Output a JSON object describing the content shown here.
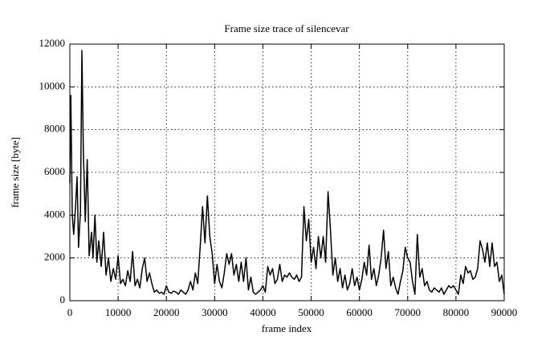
{
  "chart_data": {
    "type": "line",
    "title": "Frame size trace of silencevar",
    "x_label": "frame index",
    "y_label": "frame size [byte]",
    "color": "#000000",
    "grid": true,
    "xlim": [
      0,
      90000
    ],
    "xticks": [
      0,
      10000,
      20000,
      30000,
      40000,
      50000,
      60000,
      70000,
      80000,
      90000
    ],
    "ylim": [
      0,
      12000
    ],
    "yticks": [
      0,
      2000,
      4000,
      6000,
      8000,
      10000,
      12000
    ],
    "x": [
      0,
      200,
      500,
      800,
      1200,
      1500,
      1800,
      2200,
      2500,
      2800,
      3200,
      3600,
      4000,
      4500,
      4800,
      5200,
      5600,
      6000,
      6500,
      7000,
      7500,
      8000,
      8500,
      9000,
      9500,
      10000,
      10500,
      11000,
      11500,
      12000,
      12500,
      13000,
      13500,
      14000,
      14500,
      15000,
      15500,
      16000,
      16500,
      17000,
      17500,
      18000,
      18500,
      19000,
      19500,
      20000,
      20500,
      21000,
      21500,
      22000,
      22500,
      23000,
      23500,
      24000,
      24500,
      25000,
      25500,
      26000,
      26500,
      27000,
      27500,
      28000,
      28500,
      29000,
      29500,
      30000,
      30500,
      31000,
      31500,
      32000,
      32500,
      33000,
      33500,
      34000,
      34500,
      35000,
      35500,
      36000,
      36500,
      37000,
      37500,
      38000,
      38500,
      39000,
      39500,
      40000,
      40500,
      41000,
      41500,
      42000,
      42500,
      43000,
      43500,
      44000,
      44500,
      45000,
      45500,
      46000,
      46500,
      47000,
      47500,
      48000,
      48500,
      49000,
      49500,
      50000,
      50500,
      51000,
      51500,
      52000,
      52500,
      53000,
      53500,
      54000,
      54500,
      55000,
      55500,
      56000,
      56500,
      57000,
      57500,
      58000,
      58500,
      59000,
      59500,
      60000,
      60500,
      61000,
      61500,
      62000,
      62500,
      63000,
      63500,
      64000,
      64500,
      65000,
      65500,
      66000,
      66500,
      67000,
      67500,
      68000,
      68500,
      69000,
      69500,
      70000,
      70500,
      71000,
      71500,
      72000,
      72500,
      73000,
      73500,
      74000,
      74500,
      75000,
      75500,
      76000,
      76500,
      77000,
      77500,
      78000,
      78500,
      79000,
      79500,
      80000,
      80500,
      81000,
      81500,
      82000,
      82500,
      83000,
      83500,
      84000,
      84500,
      85000,
      85500,
      86000,
      86500,
      87000,
      87500,
      88000,
      88500,
      89000,
      89500,
      90000
    ],
    "values": [
      5500,
      9600,
      4000,
      3100,
      4500,
      5800,
      2500,
      4200,
      11700,
      7000,
      3700,
      6600,
      2100,
      3200,
      2000,
      4000,
      1800,
      2800,
      1600,
      3200,
      1200,
      2000,
      900,
      1500,
      1000,
      2100,
      800,
      1000,
      700,
      1400,
      900,
      2300,
      700,
      1000,
      600,
      1500,
      2000,
      900,
      1300,
      800,
      400,
      500,
      350,
      400,
      300,
      700,
      400,
      350,
      450,
      400,
      300,
      500,
      400,
      300,
      500,
      900,
      500,
      1300,
      800,
      2500,
      4400,
      2700,
      4900,
      3000,
      2200,
      800,
      1700,
      900,
      600,
      1300,
      2200,
      1700,
      2200,
      1200,
      1700,
      900,
      1800,
      900,
      2000,
      500,
      1100,
      400,
      300,
      400,
      500,
      700,
      400,
      1600,
      1200,
      1500,
      800,
      1000,
      1700,
      900,
      1200,
      1100,
      1300,
      1100,
      1000,
      1200,
      900,
      1100,
      4400,
      2800,
      3800,
      1800,
      2500,
      1500,
      3000,
      2000,
      3000,
      1800,
      5100,
      3300,
      1200,
      2000,
      900,
      1500,
      600,
      1200,
      500,
      800,
      1500,
      700,
      1100,
      500,
      1000,
      1800,
      1200,
      2600,
      1000,
      1500,
      700,
      1200,
      2000,
      3300,
      1500,
      2300,
      700,
      1100,
      600,
      300,
      900,
      1400,
      2500,
      2000,
      1800,
      900,
      300,
      3100,
      1100,
      1500,
      700,
      900,
      500,
      400,
      600,
      500,
      400,
      600,
      300,
      500,
      700,
      600,
      700,
      500,
      300,
      1200,
      800,
      1600,
      1300,
      1400,
      1000,
      1100,
      1500,
      2800,
      2400,
      1800,
      2700,
      1600,
      2700,
      1600,
      1800,
      900,
      1200,
      300
    ]
  }
}
